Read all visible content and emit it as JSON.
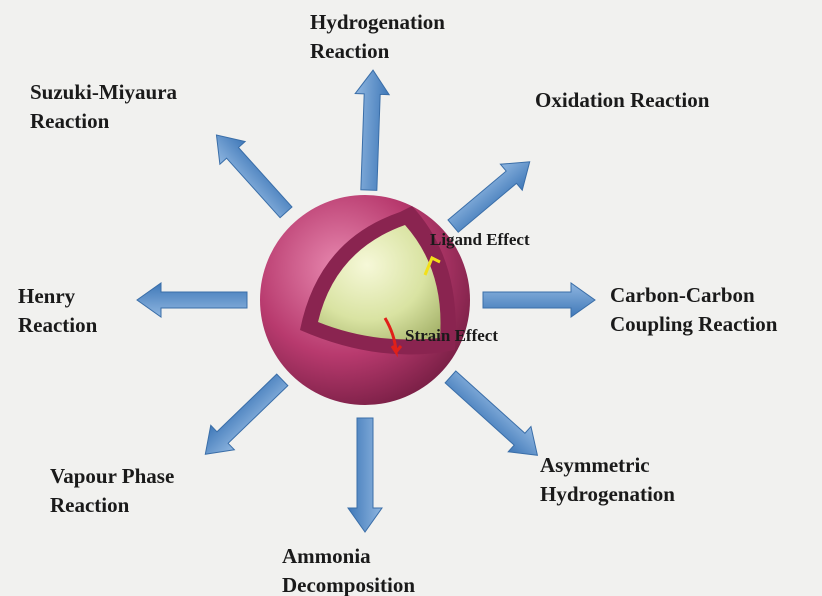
{
  "nodes": [
    {
      "lines": [
        "Hydrogenation",
        "Reaction"
      ]
    },
    {
      "lines": [
        "Oxidation Reaction"
      ]
    },
    {
      "lines": [
        "Carbon-Carbon",
        "Coupling Reaction"
      ]
    },
    {
      "lines": [
        "Asymmetric",
        "Hydrogenation"
      ]
    },
    {
      "lines": [
        "Ammonia",
        "Decomposition"
      ]
    },
    {
      "lines": [
        "Vapour Phase",
        "Reaction"
      ]
    },
    {
      "lines": [
        "Henry",
        "Reaction"
      ]
    },
    {
      "lines": [
        "Suzuki-Miyaura",
        "Reaction"
      ]
    }
  ],
  "effects": [
    "Ligand Effect",
    "Strain Effect"
  ]
}
